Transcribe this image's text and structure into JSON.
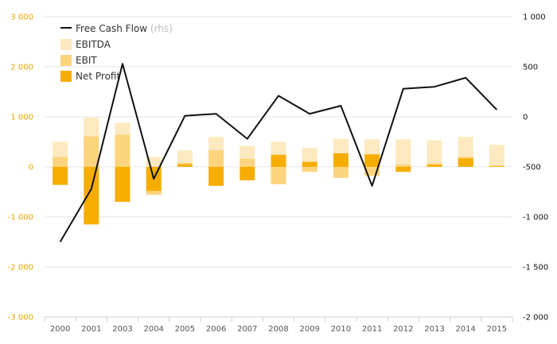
{
  "colors": {
    "ebitda": "#fde9bf",
    "ebit": "#fdd47e",
    "net_profit": "#f6ad00",
    "fcf_line": "#111111",
    "left_axis": "#e8a400",
    "grid": "#e6e6e6"
  },
  "chart_data": {
    "type": "bar",
    "categories": [
      "2000",
      "2001",
      "2003",
      "2004",
      "2005",
      "2006",
      "2007",
      "2008",
      "2009",
      "2010",
      "2011",
      "2012",
      "2013",
      "2014",
      "2015"
    ],
    "series": [
      {
        "name": "EBITDA",
        "axis": "left",
        "kind": "bar",
        "values": [
          500,
          980,
          880,
          200,
          330,
          600,
          420,
          500,
          380,
          560,
          550,
          550,
          530,
          600,
          440
        ]
      },
      {
        "name": "EBIT",
        "axis": "left",
        "kind": "bar",
        "values": [
          200,
          610,
          640,
          -560,
          80,
          330,
          160,
          -350,
          -100,
          -220,
          -180,
          50,
          70,
          200,
          30
        ]
      },
      {
        "name": "Net Profit",
        "axis": "left",
        "kind": "bar",
        "values": [
          -360,
          -1150,
          -700,
          -480,
          50,
          -380,
          -270,
          240,
          100,
          270,
          250,
          -100,
          40,
          170,
          10
        ]
      },
      {
        "name": "Free Cash Flow",
        "axis": "right",
        "kind": "line",
        "values": [
          -1250,
          -720,
          530,
          -620,
          10,
          30,
          -220,
          210,
          30,
          110,
          -690,
          280,
          300,
          390,
          70
        ]
      }
    ],
    "legend": {
      "position": "top-left",
      "rhs_suffix": "(rhs)"
    },
    "yleft": {
      "ticks": [
        3000,
        2000,
        1000,
        0,
        -1000,
        -2000,
        -3000
      ],
      "tick_labels": [
        "3 000",
        "2 000",
        "1 000",
        "0",
        "-1 000",
        "-2 000",
        "-3 000"
      ],
      "ylim": [
        -3000,
        3000
      ]
    },
    "yright": {
      "ticks": [
        1000,
        500,
        0,
        -500,
        -1000,
        -1500,
        -2000
      ],
      "tick_labels": [
        "1 000",
        "500",
        "0",
        "-500",
        "-1 000",
        "-1 500",
        "-2 000"
      ],
      "ylim": [
        -2000,
        1000
      ]
    },
    "grid": true
  }
}
